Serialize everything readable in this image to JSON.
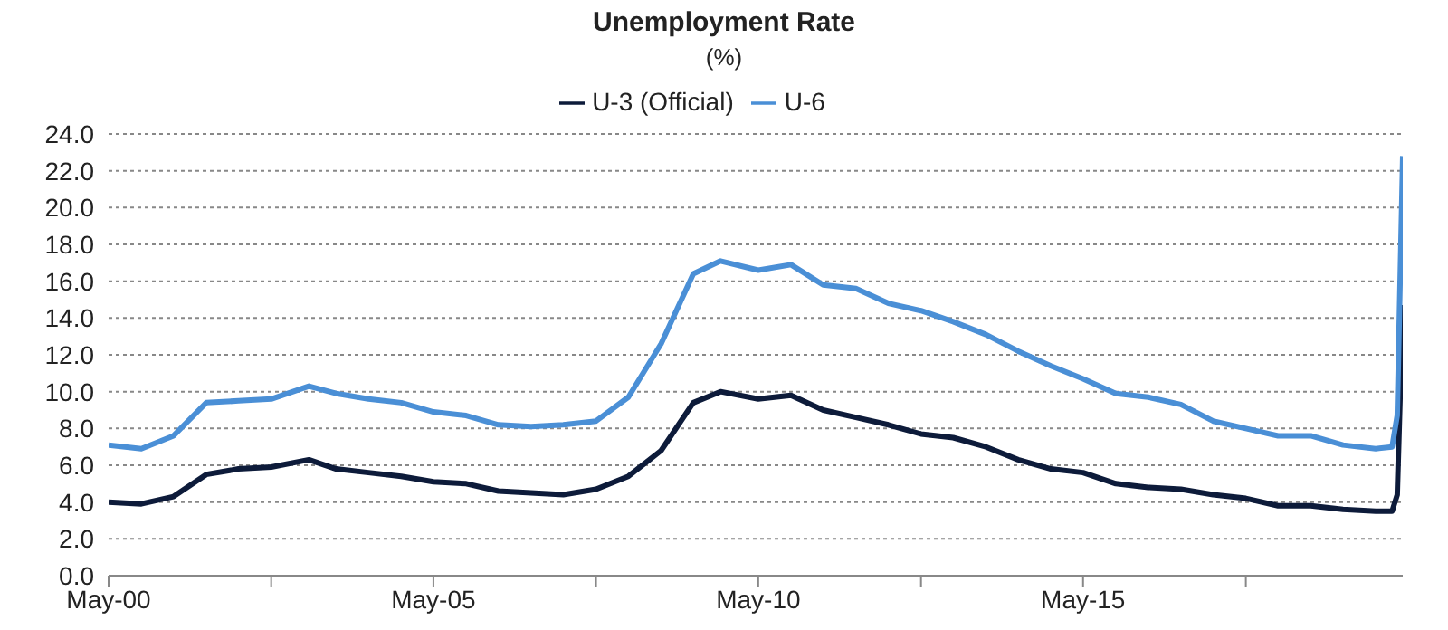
{
  "chart_data": {
    "type": "line",
    "title": "Unemployment Rate",
    "subtitle": "(%)",
    "x": [
      "2000-05",
      "2000-11",
      "2001-05",
      "2001-11",
      "2002-05",
      "2002-11",
      "2003-06",
      "2003-11",
      "2004-05",
      "2004-11",
      "2005-05",
      "2005-11",
      "2006-05",
      "2006-11",
      "2007-05",
      "2007-11",
      "2008-05",
      "2008-11",
      "2009-05",
      "2009-10",
      "2010-05",
      "2010-11",
      "2011-05",
      "2011-11",
      "2012-05",
      "2012-11",
      "2013-05",
      "2013-11",
      "2014-05",
      "2014-11",
      "2015-05",
      "2015-11",
      "2016-05",
      "2016-11",
      "2017-05",
      "2017-11",
      "2018-05",
      "2018-11",
      "2019-05",
      "2019-11",
      "2020-02",
      "2020-03",
      "2020-04"
    ],
    "series": [
      {
        "name": "U-3 (Official)",
        "color": "#0d1b3a",
        "values": [
          4.0,
          3.9,
          4.3,
          5.5,
          5.8,
          5.9,
          6.3,
          5.8,
          5.6,
          5.4,
          5.1,
          5.0,
          4.6,
          4.5,
          4.4,
          4.7,
          5.4,
          6.8,
          9.4,
          10.0,
          9.6,
          9.8,
          9.0,
          8.6,
          8.2,
          7.7,
          7.5,
          7.0,
          6.3,
          5.8,
          5.6,
          5.0,
          4.8,
          4.7,
          4.4,
          4.2,
          3.8,
          3.8,
          3.6,
          3.5,
          3.5,
          4.4,
          14.7
        ]
      },
      {
        "name": "U-6",
        "color": "#4a8fd6",
        "values": [
          7.1,
          6.9,
          7.6,
          9.4,
          9.5,
          9.6,
          10.3,
          9.9,
          9.6,
          9.4,
          8.9,
          8.7,
          8.2,
          8.1,
          8.2,
          8.4,
          9.7,
          12.6,
          16.4,
          17.1,
          16.6,
          16.9,
          15.8,
          15.6,
          14.8,
          14.4,
          13.8,
          13.1,
          12.2,
          11.4,
          10.7,
          9.9,
          9.7,
          9.3,
          8.4,
          8.0,
          7.6,
          7.6,
          7.1,
          6.9,
          7.0,
          8.7,
          22.8
        ]
      }
    ],
    "xlim": [
      "2000-05",
      "2020-04"
    ],
    "xticks": [
      {
        "value": "2000-05",
        "label": "May-00"
      },
      {
        "value": "2002-11",
        "label": null
      },
      {
        "value": "2005-05",
        "label": "May-05"
      },
      {
        "value": "2007-11",
        "label": null
      },
      {
        "value": "2010-05",
        "label": "May-10"
      },
      {
        "value": "2012-11",
        "label": null
      },
      {
        "value": "2015-05",
        "label": "May-15"
      },
      {
        "value": "2017-11",
        "label": null
      }
    ],
    "ylim": [
      0,
      24
    ],
    "yticks": [
      {
        "value": 0,
        "label": "0.0"
      },
      {
        "value": 2,
        "label": "2.0"
      },
      {
        "value": 4,
        "label": "4.0"
      },
      {
        "value": 6,
        "label": "6.0"
      },
      {
        "value": 8,
        "label": "8.0"
      },
      {
        "value": 10,
        "label": "10.0"
      },
      {
        "value": 12,
        "label": "12.0"
      },
      {
        "value": 14,
        "label": "14.0"
      },
      {
        "value": 16,
        "label": "16.0"
      },
      {
        "value": 18,
        "label": "18.0"
      },
      {
        "value": 20,
        "label": "20.0"
      },
      {
        "value": 22,
        "label": "22.0"
      },
      {
        "value": 24,
        "label": "24.0"
      }
    ],
    "grid": "y",
    "legend": "top",
    "line_style": "solid",
    "marker": "none"
  }
}
